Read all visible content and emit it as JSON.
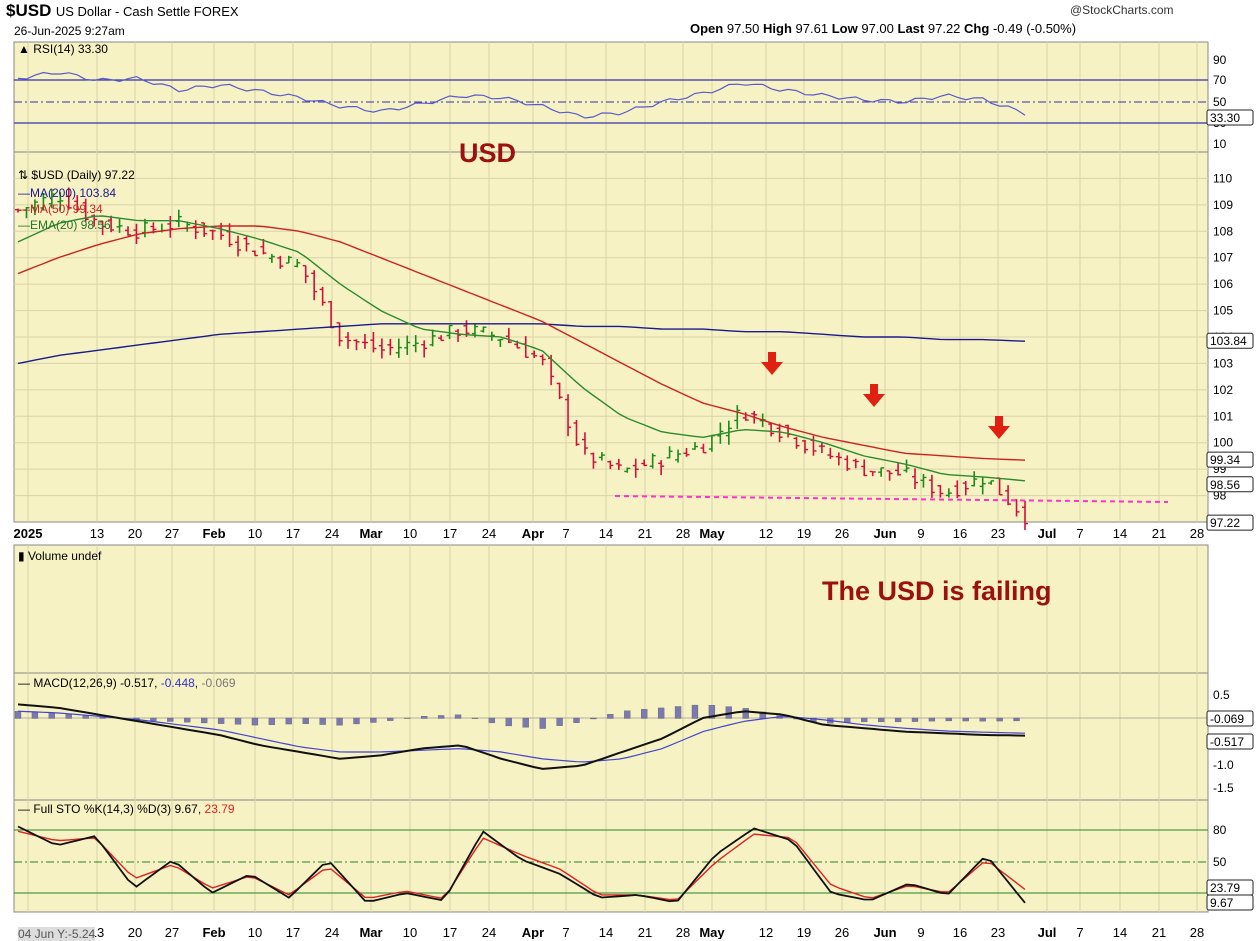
{
  "header": {
    "symbol": "$USD",
    "description": "US Dollar - Cash Settle FOREX",
    "datetime": "26-Jun-2025 9:27am",
    "source": "@StockCharts.com",
    "open_label": "Open",
    "open": "97.50",
    "high_label": "High",
    "high": "97.61",
    "low_label": "Low",
    "low": "97.00",
    "last_label": "Last",
    "last": "97.22",
    "chg_label": "Chg",
    "chg": "-0.49 (-0.50%)"
  },
  "annotations": {
    "title_overlay": "USD",
    "comment": "The USD is failing"
  },
  "x_axis": {
    "labels": [
      "2025",
      "13",
      "20",
      "27",
      "Feb",
      "10",
      "17",
      "24",
      "Mar",
      "10",
      "17",
      "24",
      "Apr",
      "7",
      "14",
      "21",
      "28",
      "May",
      "12",
      "19",
      "26",
      "Jun",
      "9",
      "16",
      "23",
      "Jul",
      "7",
      "14",
      "21",
      "28"
    ],
    "bold": [
      "2025",
      "Feb",
      "Mar",
      "Apr",
      "May",
      "Jun",
      "Jul"
    ],
    "bottom_left_label": "04 Jun Y:-5.24"
  },
  "panels": {
    "rsi": {
      "legend": "RSI(14) 33.30",
      "ticks": [
        "90",
        "70",
        "50",
        "30",
        "10"
      ],
      "last_tag": "33.30",
      "overbought": 70,
      "oversold": 30
    },
    "price": {
      "legend_title": "$USD (Daily) 97.22",
      "legend_items": [
        {
          "text": "MA(200) 103.84",
          "color": "#1a1a8c"
        },
        {
          "text": "MA(50) 99.34",
          "color": "#cc2222"
        },
        {
          "text": "EMA(20) 98.56",
          "color": "#227722"
        }
      ],
      "ticks": [
        "110",
        "109",
        "108",
        "107",
        "106",
        "105",
        "104",
        "103",
        "102",
        "101",
        "100",
        "99",
        "98"
      ],
      "tags": [
        "103.84",
        "99.34",
        "98.56",
        "97.22"
      ],
      "support_level": 97.6
    },
    "volume": {
      "legend": "Volume undef"
    },
    "macd": {
      "legend_prefix": "MACD(12,26,9)",
      "v1": "-0.517",
      "v2": "-0.448",
      "v3": "-0.069",
      "ticks": [
        "0.5",
        "-1.0",
        "-1.5"
      ],
      "tags": [
        "-0.069",
        "-0.517"
      ]
    },
    "sto": {
      "legend_prefix": "Full STO %K(14,3) %D(3)",
      "k": "9.67",
      "d": "23.79",
      "ticks": [
        "80",
        "50",
        "20"
      ],
      "tags": [
        "23.79",
        "9.67"
      ]
    }
  },
  "colors": {
    "panel_bg": "#f6f2c4",
    "up_bar": "#1a8a1a",
    "down_bar": "#d0103a",
    "ma200": "#1a1a8c",
    "ma50": "#cc2222",
    "ema20": "#2d8a2d",
    "support": "#ff33cc",
    "arrow": "#e02010",
    "rsi": "#5a5acc",
    "macd_hist": "#7a7ab0"
  },
  "chart_data": {
    "type": "line",
    "title": "$USD US Dollar - Cash Settle FOREX",
    "series": [
      {
        "name": "$USD (Daily)",
        "x": [
          "2025-01-06",
          "2025-01-13",
          "2025-01-20",
          "2025-01-27",
          "2025-02-03",
          "2025-02-10",
          "2025-02-17",
          "2025-02-24",
          "2025-03-03",
          "2025-03-10",
          "2025-03-17",
          "2025-03-24",
          "2025-03-31",
          "2025-04-07",
          "2025-04-14",
          "2025-04-21",
          "2025-04-28",
          "2025-05-05",
          "2025-05-12",
          "2025-05-19",
          "2025-05-26",
          "2025-06-02",
          "2025-06-09",
          "2025-06-16",
          "2025-06-23",
          "2025-06-26"
        ],
        "values": [
          108.8,
          109.4,
          108.3,
          108.0,
          108.3,
          107.9,
          107.2,
          106.7,
          104.0,
          103.5,
          103.8,
          104.3,
          104.0,
          103.1,
          99.6,
          98.9,
          99.4,
          99.9,
          101.2,
          100.4,
          99.6,
          99.0,
          98.8,
          98.1,
          98.7,
          97.22
        ]
      },
      {
        "name": "MA(200)",
        "values": [
          103.0,
          103.3,
          103.5,
          103.7,
          103.9,
          104.1,
          104.2,
          104.3,
          104.4,
          104.5,
          104.5,
          104.5,
          104.5,
          104.5,
          104.4,
          104.4,
          104.3,
          104.3,
          104.2,
          104.2,
          104.1,
          104.0,
          104.0,
          103.9,
          103.9,
          103.84
        ]
      },
      {
        "name": "MA(50)",
        "values": [
          106.4,
          107.0,
          107.5,
          107.9,
          108.1,
          108.2,
          108.2,
          108.0,
          107.6,
          107.0,
          106.4,
          105.8,
          105.2,
          104.6,
          103.8,
          103.0,
          102.2,
          101.5,
          101.1,
          100.6,
          100.2,
          99.9,
          99.6,
          99.5,
          99.4,
          99.34
        ]
      },
      {
        "name": "EMA(20)",
        "values": [
          107.6,
          108.3,
          108.6,
          108.4,
          108.4,
          108.1,
          107.7,
          107.2,
          106.0,
          105.0,
          104.3,
          104.1,
          104.0,
          103.5,
          102.1,
          101.0,
          100.4,
          100.2,
          100.5,
          100.4,
          100.0,
          99.5,
          99.2,
          98.8,
          98.7,
          98.56
        ]
      }
    ],
    "rsi": {
      "name": "RSI(14)",
      "last": 33.3
    },
    "macd": {
      "macd": -0.517,
      "signal": -0.448,
      "histogram": -0.069
    },
    "stochastic": {
      "k": 9.67,
      "d": 23.79
    },
    "ylim": [
      97,
      111
    ],
    "xlabel": "",
    "ylabel": ""
  }
}
